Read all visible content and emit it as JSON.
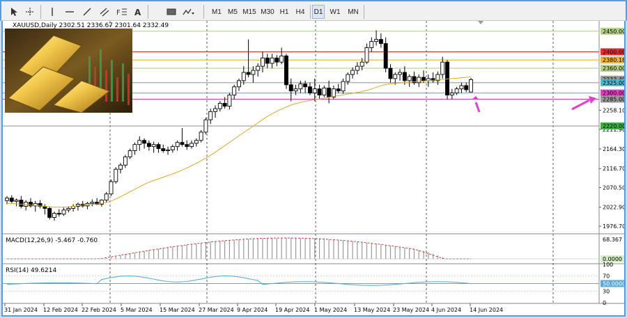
{
  "toolbar": {
    "timeframes": [
      "M1",
      "M5",
      "M15",
      "M30",
      "H1",
      "H4",
      "D1",
      "W1",
      "MN"
    ],
    "active_timeframe": "D1",
    "icons": [
      "cursor-icon",
      "crosshair-icon",
      "vertical-line-icon",
      "horizontal-line-icon",
      "trendline-icon",
      "channel-icon",
      "fibonacci-icon",
      "text-icon",
      "rectangle-icon",
      "more-shapes-icon"
    ]
  },
  "chart": {
    "symbol_text": "XAUUSD,Daily  2302.51 2336.67 2301.64 2332.49",
    "macd_text": "MACD(12,26,9) -5.467 -0.760",
    "rsi_text": "RSI(14) 49.6214",
    "price_axis_ticks": [
      "2258.10",
      "2211.90",
      "2164.30",
      "2116.70",
      "2070.50",
      "2022.90",
      "1976.70"
    ],
    "level_tags": [
      {
        "label": "2450.00",
        "color": "#b5d08a"
      },
      {
        "label": "2400.00",
        "color": "#e03030"
      },
      {
        "label": "2380.18",
        "color": "#f0b030"
      },
      {
        "label": "2360.00",
        "color": "#b5d08a"
      },
      {
        "label": "2333.49",
        "color": "#9a9a9a"
      },
      {
        "label": "2325.00",
        "color": "#4fb8d0"
      },
      {
        "label": "2300.00",
        "color": "#e040c0"
      },
      {
        "label": "2285.00",
        "color": "#9a9a9a"
      },
      {
        "label": "2220.00",
        "color": "#3cb043"
      }
    ],
    "macd_axis_ticks": [
      "68.367",
      "0.0000"
    ],
    "rsi_axis_ticks": [
      "100",
      "70",
      "50.0000",
      "30",
      "0"
    ],
    "date_axis": [
      "31 Jan 2024",
      "12 Feb 2024",
      "22 Feb 2024",
      "5 Mar 2024",
      "15 Mar 2024",
      "27 Mar 2024",
      "9 Apr 2024",
      "19 Apr 2024",
      "1 May 2024",
      "13 May 2024",
      "23 May 2024",
      "4 Jun 2024",
      "14 Jun 2024"
    ],
    "colors": {
      "up": "#ffffff",
      "down": "#000000",
      "ma": "#e0a830",
      "rsi": "#4aa8d8",
      "macd_signal": "#c03030",
      "arrow": "#e040d0"
    }
  },
  "chart_data": {
    "type": "candlestick",
    "symbol": "XAUUSD",
    "timeframe": "Daily",
    "ohlc_last": {
      "open": 2302.51,
      "high": 2336.67,
      "low": 2301.64,
      "close": 2332.49
    },
    "ylim": [
      1960,
      2475
    ],
    "levels": [
      2450,
      2400,
      2380.18,
      2360,
      2325,
      2300,
      2285,
      2220
    ],
    "candles": [
      [
        2039,
        2050,
        2030,
        2045
      ],
      [
        2045,
        2052,
        2033,
        2037
      ],
      [
        2037,
        2044,
        2025,
        2040
      ],
      [
        2040,
        2050,
        2020,
        2025
      ],
      [
        2025,
        2040,
        2015,
        2035
      ],
      [
        2035,
        2045,
        2022,
        2026
      ],
      [
        2026,
        2038,
        2012,
        2032
      ],
      [
        2032,
        2040,
        2020,
        2025
      ],
      [
        2025,
        2030,
        2005,
        2020
      ],
      [
        2020,
        2025,
        1993,
        1998
      ],
      [
        1998,
        2012,
        1990,
        2008
      ],
      [
        2008,
        2018,
        2000,
        2006
      ],
      [
        2006,
        2022,
        2002,
        2016
      ],
      [
        2016,
        2025,
        2010,
        2020
      ],
      [
        2020,
        2030,
        2012,
        2025
      ],
      [
        2025,
        2034,
        2015,
        2030
      ],
      [
        2030,
        2038,
        2022,
        2026
      ],
      [
        2026,
        2036,
        2018,
        2032
      ],
      [
        2032,
        2042,
        2025,
        2035
      ],
      [
        2035,
        2045,
        2028,
        2030
      ],
      [
        2030,
        2042,
        2024,
        2040
      ],
      [
        2040,
        2060,
        2035,
        2055
      ],
      [
        2055,
        2090,
        2050,
        2085
      ],
      [
        2085,
        2120,
        2080,
        2115
      ],
      [
        2115,
        2130,
        2105,
        2125
      ],
      [
        2125,
        2150,
        2118,
        2145
      ],
      [
        2145,
        2165,
        2140,
        2160
      ],
      [
        2160,
        2180,
        2150,
        2175
      ],
      [
        2175,
        2195,
        2160,
        2185
      ],
      [
        2185,
        2190,
        2165,
        2178
      ],
      [
        2178,
        2185,
        2160,
        2170
      ],
      [
        2170,
        2182,
        2155,
        2175
      ],
      [
        2175,
        2180,
        2155,
        2165
      ],
      [
        2165,
        2175,
        2155,
        2160
      ],
      [
        2160,
        2170,
        2150,
        2162
      ],
      [
        2162,
        2175,
        2155,
        2170
      ],
      [
        2170,
        2185,
        2160,
        2180
      ],
      [
        2180,
        2215,
        2170,
        2175
      ],
      [
        2175,
        2185,
        2162,
        2170
      ],
      [
        2170,
        2185,
        2165,
        2178
      ],
      [
        2178,
        2190,
        2170,
        2185
      ],
      [
        2185,
        2210,
        2180,
        2205
      ],
      [
        2205,
        2240,
        2200,
        2235
      ],
      [
        2235,
        2262,
        2225,
        2255
      ],
      [
        2255,
        2270,
        2240,
        2262
      ],
      [
        2262,
        2280,
        2255,
        2275
      ],
      [
        2275,
        2290,
        2262,
        2268
      ],
      [
        2268,
        2300,
        2260,
        2295
      ],
      [
        2295,
        2320,
        2285,
        2315
      ],
      [
        2315,
        2335,
        2305,
        2330
      ],
      [
        2330,
        2365,
        2320,
        2350
      ],
      [
        2350,
        2430,
        2338,
        2345
      ],
      [
        2345,
        2365,
        2325,
        2355
      ],
      [
        2355,
        2372,
        2340,
        2365
      ],
      [
        2365,
        2400,
        2350,
        2385
      ],
      [
        2385,
        2395,
        2360,
        2372
      ],
      [
        2372,
        2395,
        2360,
        2385
      ],
      [
        2385,
        2392,
        2365,
        2375
      ],
      [
        2375,
        2410,
        2370,
        2390
      ],
      [
        2390,
        2395,
        2310,
        2320
      ],
      [
        2320,
        2335,
        2280,
        2305
      ],
      [
        2305,
        2320,
        2295,
        2310
      ],
      [
        2310,
        2330,
        2300,
        2322
      ],
      [
        2322,
        2330,
        2300,
        2315
      ],
      [
        2315,
        2325,
        2295,
        2300
      ],
      [
        2300,
        2335,
        2280,
        2310
      ],
      [
        2310,
        2320,
        2285,
        2295
      ],
      [
        2295,
        2318,
        2290,
        2312
      ],
      [
        2312,
        2330,
        2275,
        2290
      ],
      [
        2290,
        2318,
        2285,
        2310
      ],
      [
        2310,
        2322,
        2300,
        2305
      ],
      [
        2305,
        2335,
        2298,
        2328
      ],
      [
        2328,
        2350,
        2320,
        2345
      ],
      [
        2345,
        2362,
        2335,
        2355
      ],
      [
        2355,
        2375,
        2345,
        2365
      ],
      [
        2365,
        2385,
        2355,
        2375
      ],
      [
        2375,
        2420,
        2370,
        2410
      ],
      [
        2410,
        2435,
        2400,
        2425
      ],
      [
        2425,
        2452,
        2415,
        2430
      ],
      [
        2430,
        2445,
        2410,
        2420
      ],
      [
        2420,
        2435,
        2350,
        2360
      ],
      [
        2360,
        2370,
        2325,
        2335
      ],
      [
        2335,
        2350,
        2320,
        2345
      ],
      [
        2345,
        2358,
        2330,
        2350
      ],
      [
        2350,
        2365,
        2320,
        2330
      ],
      [
        2330,
        2345,
        2315,
        2340
      ],
      [
        2340,
        2352,
        2320,
        2325
      ],
      [
        2325,
        2345,
        2315,
        2338
      ],
      [
        2338,
        2355,
        2325,
        2330
      ],
      [
        2330,
        2345,
        2315,
        2335
      ],
      [
        2335,
        2350,
        2325,
        2330
      ],
      [
        2330,
        2352,
        2320,
        2345
      ],
      [
        2345,
        2388,
        2335,
        2375
      ],
      [
        2375,
        2380,
        2285,
        2295
      ],
      [
        2295,
        2310,
        2285,
        2300
      ],
      [
        2300,
        2315,
        2295,
        2310
      ],
      [
        2310,
        2325,
        2300,
        2318
      ],
      [
        2318,
        2325,
        2302,
        2308
      ],
      [
        2302.51,
        2336.67,
        2301.64,
        2332.49
      ]
    ],
    "ma_series": [
      2032,
      2032,
      2031,
      2030,
      2029,
      2028,
      2027,
      2026,
      2025,
      2024,
      2023,
      2023,
      2023,
      2024,
      2025,
      2027,
      2028,
      2029,
      2030,
      2031,
      2032,
      2035,
      2039,
      2044,
      2050,
      2056,
      2062,
      2068,
      2074,
      2080,
      2085,
      2089,
      2093,
      2097,
      2101,
      2105,
      2110,
      2115,
      2120,
      2126,
      2132,
      2138,
      2145,
      2152,
      2160,
      2168,
      2176,
      2184,
      2192,
      2200,
      2208,
      2216,
      2224,
      2232,
      2240,
      2247,
      2253,
      2259,
      2264,
      2269,
      2273,
      2276,
      2279,
      2281,
      2283,
      2285,
      2287,
      2289,
      2291,
      2293,
      2295,
      2297,
      2299,
      2301,
      2303,
      2306,
      2309,
      2313,
      2317,
      2320,
      2322,
      2323,
      2324,
      2325,
      2326,
      2327,
      2328,
      2329,
      2330,
      2331,
      2332,
      2333,
      2334,
      2335,
      2336,
      2337,
      2338,
      2339
    ],
    "rsi_last": 49.6214,
    "macd_last": {
      "main": -5.467,
      "signal": -0.76
    }
  }
}
